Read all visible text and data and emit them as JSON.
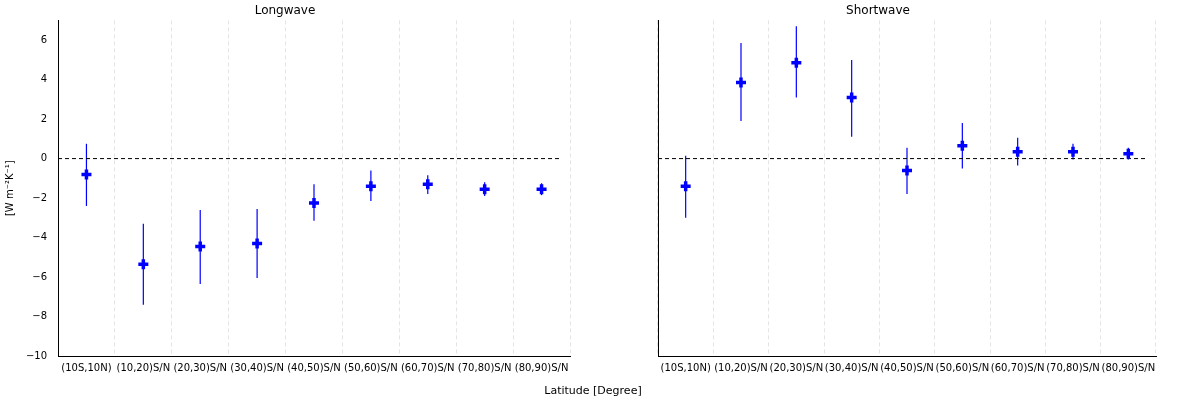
{
  "chart_data": [
    {
      "type": "scatter",
      "title": "Longwave",
      "xlabel": "Latitude [Degree]",
      "ylabel": "[W m⁻²K⁻¹]",
      "categories": [
        "(10S,10N)",
        "(10,20)S/N",
        "(20,30)S/N",
        "(30,40)S/N",
        "(40,50)S/N",
        "(50,60)S/N",
        "(60,70)S/N",
        "(70,80)S/N",
        "(80,90)S/N"
      ],
      "series": [
        {
          "color": "#0000ff",
          "values": [
            -0.8,
            -5.35,
            -4.45,
            -4.3,
            -2.25,
            -1.4,
            -1.3,
            -1.55,
            -1.55
          ],
          "errors": [
            [
              -2.4,
              0.75
            ],
            [
              -7.4,
              -3.3
            ],
            [
              -6.35,
              -2.6
            ],
            [
              -6.05,
              -2.55
            ],
            [
              -3.15,
              -1.3
            ],
            [
              -2.15,
              -0.6
            ],
            [
              -1.8,
              -0.85
            ],
            [
              -1.9,
              -1.2
            ],
            [
              -1.85,
              -1.25
            ]
          ]
        }
      ],
      "ylim": [
        -10,
        7
      ],
      "yticks": [
        -10,
        -8,
        -6,
        -4,
        -2,
        0,
        2,
        4,
        6
      ],
      "grid": "x",
      "marker": "cross",
      "legend": false,
      "ref_lines": [
        {
          "axis": "y",
          "value": 0,
          "color": "#000000",
          "line_style": "dashed"
        }
      ]
    },
    {
      "type": "scatter",
      "title": "Shortwave",
      "categories": [
        "(10S,10N)",
        "(10,20)S/N",
        "(20,30)S/N",
        "(30,40)S/N",
        "(40,50)S/N",
        "(50,60)S/N",
        "(60,70)S/N",
        "(70,80)S/N",
        "(80,90)S/N"
      ],
      "series": [
        {
          "color": "#0000ff",
          "values": [
            -1.4,
            3.85,
            4.85,
            3.1,
            -0.6,
            0.65,
            0.35,
            0.35,
            0.25
          ],
          "errors": [
            [
              -3.0,
              0.15
            ],
            [
              1.9,
              5.85
            ],
            [
              3.1,
              6.7
            ],
            [
              1.1,
              5.0
            ],
            [
              -1.8,
              0.55
            ],
            [
              -0.5,
              1.8
            ],
            [
              -0.35,
              1.05
            ],
            [
              -0.05,
              0.75
            ],
            [
              -0.05,
              0.55
            ]
          ]
        }
      ],
      "ylim": [
        -10,
        7
      ],
      "yticks": [
        -10,
        -8,
        -6,
        -4,
        -2,
        0,
        2,
        4,
        6
      ],
      "tick_labels": "x",
      "grid": "x",
      "marker": "cross",
      "legend": false,
      "ref_lines": [
        {
          "axis": "y",
          "value": 0,
          "color": "#000000",
          "line_style": "dashed"
        }
      ]
    }
  ]
}
